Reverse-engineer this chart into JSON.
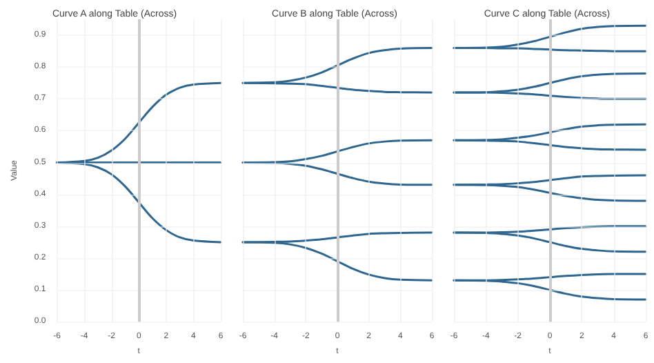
{
  "chart_data": [
    {
      "type": "line",
      "title": "Curve A along Table (Across)",
      "xlabel": "t",
      "ylabel": "Value",
      "x": [
        -6,
        -4,
        -3,
        -2,
        -1,
        0,
        1,
        2,
        3,
        4,
        6
      ],
      "xlim": [
        -6,
        6
      ],
      "xticks": [
        -6,
        -4,
        -2,
        0,
        2,
        4,
        6
      ],
      "ylim": [
        0,
        0.95
      ],
      "yticks": [
        {
          "value": 0,
          "label": "0.0"
        },
        0.1,
        0.2,
        0.3,
        0.4,
        0.5,
        0.6,
        0.7,
        0.8,
        0.9
      ],
      "grid": true,
      "marker": "none",
      "line_style": "solid",
      "ref_lines": [
        {
          "axis": "x",
          "value": 0,
          "color": "#cccccc"
        }
      ],
      "series": [
        {
          "color": "#2f6690",
          "values": [
            0.5,
            0.505,
            0.515,
            0.538,
            0.575,
            0.625,
            0.675,
            0.713,
            0.735,
            0.745,
            0.75
          ]
        },
        {
          "color": "#2f6690",
          "values": [
            0.5,
            0.5,
            0.5,
            0.5,
            0.5,
            0.5,
            0.5,
            0.5,
            0.5,
            0.5,
            0.5
          ]
        },
        {
          "color": "#2f6690",
          "values": [
            0.5,
            0.495,
            0.485,
            0.463,
            0.425,
            0.375,
            0.325,
            0.288,
            0.265,
            0.255,
            0.25
          ]
        }
      ]
    },
    {
      "type": "line",
      "title": "Curve B along Table (Across)",
      "xlabel": "t",
      "x": [
        -6,
        -4,
        -3,
        -2,
        -1,
        0,
        1,
        2,
        3,
        4,
        6
      ],
      "xlim": [
        -6,
        6
      ],
      "xticks": [
        -6,
        -4,
        -2,
        0,
        2,
        4,
        6
      ],
      "ylim": [
        0,
        0.95
      ],
      "yticks": [
        0,
        0.1,
        0.2,
        0.3,
        0.4,
        0.5,
        0.6,
        0.7,
        0.8,
        0.9
      ],
      "tick_labels": "x",
      "grid": true,
      "marker": "none",
      "line_style": "solid",
      "ref_lines": [
        {
          "axis": "x",
          "value": 0,
          "color": "#cccccc"
        }
      ],
      "series": [
        {
          "color": "#2f6690",
          "values": [
            0.75,
            0.752,
            0.757,
            0.767,
            0.783,
            0.805,
            0.827,
            0.844,
            0.853,
            0.858,
            0.86
          ]
        },
        {
          "color": "#2f6690",
          "values": [
            0.75,
            0.749,
            0.748,
            0.746,
            0.741,
            0.735,
            0.729,
            0.725,
            0.722,
            0.721,
            0.72
          ]
        },
        {
          "color": "#2f6690",
          "values": [
            0.5,
            0.501,
            0.504,
            0.511,
            0.521,
            0.535,
            0.549,
            0.56,
            0.566,
            0.569,
            0.57
          ]
        },
        {
          "color": "#2f6690",
          "values": [
            0.5,
            0.499,
            0.496,
            0.49,
            0.479,
            0.465,
            0.451,
            0.44,
            0.434,
            0.431,
            0.43
          ]
        },
        {
          "color": "#2f6690",
          "values": [
            0.25,
            0.251,
            0.252,
            0.255,
            0.259,
            0.265,
            0.271,
            0.276,
            0.278,
            0.279,
            0.28
          ]
        },
        {
          "color": "#2f6690",
          "values": [
            0.25,
            0.248,
            0.243,
            0.232,
            0.214,
            0.19,
            0.166,
            0.148,
            0.137,
            0.132,
            0.13
          ]
        }
      ]
    },
    {
      "type": "line",
      "title": "Curve C along Table (Across)",
      "xlabel": "t",
      "x": [
        -6,
        -4,
        -3,
        -2,
        -1,
        0,
        1,
        2,
        3,
        4,
        6
      ],
      "xlim": [
        -6,
        6
      ],
      "xticks": [
        -6,
        -4,
        -2,
        0,
        2,
        4,
        6
      ],
      "ylim": [
        0,
        0.95
      ],
      "yticks": [
        0,
        0.1,
        0.2,
        0.3,
        0.4,
        0.5,
        0.6,
        0.7,
        0.8,
        0.9
      ],
      "tick_labels": "x",
      "grid": true,
      "marker": "none",
      "line_style": "solid",
      "ref_lines": [
        {
          "axis": "x",
          "value": 0,
          "color": "#cccccc"
        }
      ],
      "series": [
        {
          "color": "#2f6690",
          "values": [
            0.86,
            0.861,
            0.864,
            0.871,
            0.881,
            0.895,
            0.909,
            0.92,
            0.926,
            0.929,
            0.93
          ]
        },
        {
          "color": "#2f6690",
          "values": [
            0.86,
            0.86,
            0.859,
            0.859,
            0.857,
            0.855,
            0.853,
            0.852,
            0.851,
            0.85,
            0.85
          ]
        },
        {
          "color": "#2f6690",
          "values": [
            0.72,
            0.721,
            0.724,
            0.729,
            0.738,
            0.75,
            0.762,
            0.771,
            0.776,
            0.779,
            0.78
          ]
        },
        {
          "color": "#2f6690",
          "values": [
            0.72,
            0.72,
            0.719,
            0.717,
            0.714,
            0.71,
            0.706,
            0.703,
            0.701,
            0.7,
            0.7
          ]
        },
        {
          "color": "#2f6690",
          "values": [
            0.57,
            0.571,
            0.573,
            0.578,
            0.585,
            0.595,
            0.605,
            0.613,
            0.617,
            0.619,
            0.62
          ]
        },
        {
          "color": "#2f6690",
          "values": [
            0.57,
            0.569,
            0.568,
            0.566,
            0.561,
            0.555,
            0.549,
            0.545,
            0.542,
            0.541,
            0.54
          ]
        },
        {
          "color": "#2f6690",
          "values": [
            0.43,
            0.431,
            0.432,
            0.435,
            0.439,
            0.445,
            0.451,
            0.456,
            0.458,
            0.459,
            0.46
          ]
        },
        {
          "color": "#2f6690",
          "values": [
            0.43,
            0.429,
            0.427,
            0.423,
            0.415,
            0.405,
            0.395,
            0.388,
            0.383,
            0.381,
            0.38
          ]
        },
        {
          "color": "#2f6690",
          "values": [
            0.28,
            0.28,
            0.281,
            0.283,
            0.286,
            0.29,
            0.294,
            0.297,
            0.299,
            0.3,
            0.3
          ]
        },
        {
          "color": "#2f6690",
          "values": [
            0.28,
            0.279,
            0.276,
            0.271,
            0.262,
            0.25,
            0.238,
            0.229,
            0.224,
            0.221,
            0.22
          ]
        },
        {
          "color": "#2f6690",
          "values": [
            0.13,
            0.13,
            0.131,
            0.133,
            0.136,
            0.14,
            0.144,
            0.147,
            0.149,
            0.15,
            0.15
          ]
        },
        {
          "color": "#2f6690",
          "values": [
            0.13,
            0.129,
            0.126,
            0.121,
            0.112,
            0.1,
            0.088,
            0.079,
            0.074,
            0.071,
            0.07
          ]
        }
      ]
    }
  ]
}
